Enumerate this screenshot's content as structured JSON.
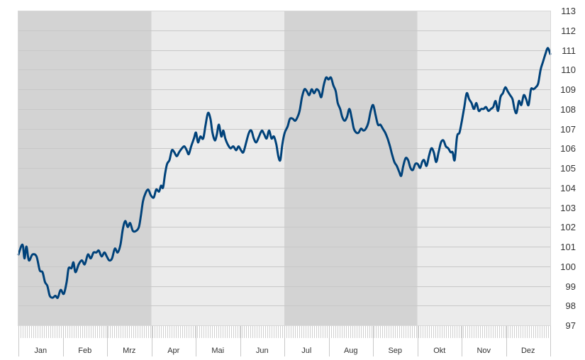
{
  "chart_data": {
    "type": "line",
    "title": "",
    "xlabel": "",
    "ylabel": "",
    "ylim": [
      97,
      113
    ],
    "y_ticks": [
      "97",
      "98",
      "99",
      "100",
      "101",
      "102",
      "103",
      "104",
      "105",
      "106",
      "107",
      "108",
      "109",
      "110",
      "111",
      "112",
      "113"
    ],
    "months": [
      "Jan",
      "Feb",
      "Mrz",
      "Apr",
      "Mai",
      "Jun",
      "Jul",
      "Aug",
      "Sep",
      "Okt",
      "Nov",
      "Dez"
    ],
    "grid": true,
    "line_color": "#00427A",
    "band_colors": {
      "dark": "#D3D3D3",
      "light": "#EBEBEB"
    },
    "shaded_quarters": [
      {
        "start_month": "Jan",
        "end_month": "Mrz",
        "shade": "dark"
      },
      {
        "start_month": "Apr",
        "end_month": "Jun",
        "shade": "light"
      },
      {
        "start_month": "Jul",
        "end_month": "Sep",
        "shade": "dark"
      },
      {
        "start_month": "Okt",
        "end_month": "Dez",
        "shade": "light"
      }
    ],
    "series": [
      {
        "values": [
          [
            0,
            100.6
          ],
          [
            1,
            101.1
          ],
          [
            1.5,
            100.4
          ],
          [
            2,
            101.0
          ],
          [
            2.6,
            100.3
          ],
          [
            3.5,
            100.6
          ],
          [
            4.5,
            100.5
          ],
          [
            5.3,
            99.8
          ],
          [
            6,
            99.7
          ],
          [
            6.6,
            99.2
          ],
          [
            7.2,
            99.0
          ],
          [
            7.8,
            98.5
          ],
          [
            8.5,
            98.4
          ],
          [
            9.2,
            98.5
          ],
          [
            9.8,
            98.4
          ],
          [
            10.5,
            98.8
          ],
          [
            11.3,
            98.6
          ],
          [
            12,
            99.2
          ],
          [
            12.5,
            99.9
          ],
          [
            13.2,
            99.9
          ],
          [
            13.7,
            100.2
          ],
          [
            14.2,
            99.7
          ],
          [
            15,
            100.1
          ],
          [
            15.8,
            100.3
          ],
          [
            16.5,
            100.1
          ],
          [
            17.3,
            100.6
          ],
          [
            18,
            100.4
          ],
          [
            18.7,
            100.7
          ],
          [
            19.4,
            100.7
          ],
          [
            20,
            100.8
          ],
          [
            20.7,
            100.5
          ],
          [
            21.4,
            100.7
          ],
          [
            22,
            100.5
          ],
          [
            22.6,
            100.3
          ],
          [
            23.3,
            100.4
          ],
          [
            24,
            100.9
          ],
          [
            24.7,
            100.7
          ],
          [
            25.4,
            101.1
          ],
          [
            26,
            101.9
          ],
          [
            26.6,
            102.3
          ],
          [
            27.2,
            102.0
          ],
          [
            27.8,
            102.2
          ],
          [
            28.5,
            101.8
          ],
          [
            29.3,
            101.8
          ],
          [
            30,
            102.0
          ],
          [
            30.5,
            102.6
          ],
          [
            31,
            103.3
          ],
          [
            31.6,
            103.7
          ],
          [
            32.3,
            103.9
          ],
          [
            33,
            103.6
          ],
          [
            33.7,
            103.5
          ],
          [
            34.3,
            103.9
          ],
          [
            35,
            103.8
          ],
          [
            35.5,
            104.1
          ],
          [
            36,
            104.0
          ],
          [
            36.5,
            104.7
          ],
          [
            37,
            105.2
          ],
          [
            37.6,
            105.4
          ],
          [
            38.2,
            105.9
          ],
          [
            38.8,
            105.8
          ],
          [
            39.4,
            105.6
          ],
          [
            40,
            105.8
          ],
          [
            40.7,
            106.0
          ],
          [
            41.3,
            106.1
          ],
          [
            41.9,
            105.9
          ],
          [
            42.4,
            105.7
          ],
          [
            43,
            106.1
          ],
          [
            43.7,
            106.5
          ],
          [
            44.2,
            106.8
          ],
          [
            44.7,
            106.3
          ],
          [
            45.3,
            106.6
          ],
          [
            46,
            106.5
          ],
          [
            46.6,
            107.2
          ],
          [
            47.2,
            107.8
          ],
          [
            47.8,
            107.5
          ],
          [
            48.3,
            106.8
          ],
          [
            48.9,
            106.4
          ],
          [
            49.4,
            106.7
          ],
          [
            49.9,
            107.2
          ],
          [
            50.5,
            106.6
          ],
          [
            51,
            106.9
          ],
          [
            51.5,
            106.5
          ],
          [
            52.1,
            106.2
          ],
          [
            52.8,
            106.0
          ],
          [
            53.5,
            106.1
          ],
          [
            54.2,
            105.9
          ],
          [
            54.8,
            106.1
          ],
          [
            55.4,
            105.9
          ],
          [
            56,
            105.8
          ],
          [
            56.7,
            106.3
          ],
          [
            57.4,
            106.8
          ],
          [
            58,
            106.9
          ],
          [
            58.6,
            106.5
          ],
          [
            59.2,
            106.3
          ],
          [
            59.9,
            106.6
          ],
          [
            60.6,
            106.9
          ],
          [
            61.2,
            106.7
          ],
          [
            61.8,
            106.5
          ],
          [
            62.4,
            106.9
          ],
          [
            63,
            106.5
          ],
          [
            63.6,
            106.6
          ],
          [
            64.2,
            106.2
          ],
          [
            64.7,
            105.6
          ],
          [
            65.2,
            105.4
          ],
          [
            65.7,
            106.2
          ],
          [
            66.3,
            106.8
          ],
          [
            67,
            107.1
          ],
          [
            67.6,
            107.5
          ],
          [
            68.3,
            107.5
          ],
          [
            68.9,
            107.4
          ],
          [
            69.5,
            107.6
          ],
          [
            70,
            107.9
          ],
          [
            70.6,
            108.6
          ],
          [
            71.2,
            109.0
          ],
          [
            71.8,
            108.9
          ],
          [
            72.4,
            108.7
          ],
          [
            73,
            109.0
          ],
          [
            73.6,
            108.8
          ],
          [
            74.2,
            109.0
          ],
          [
            74.8,
            108.9
          ],
          [
            75.4,
            108.6
          ],
          [
            76,
            109.2
          ],
          [
            76.6,
            109.6
          ],
          [
            77.2,
            109.5
          ],
          [
            77.8,
            109.6
          ],
          [
            78.4,
            109.2
          ],
          [
            79,
            108.9
          ],
          [
            79.5,
            108.3
          ],
          [
            80.1,
            108.0
          ],
          [
            80.6,
            107.6
          ],
          [
            81.2,
            107.4
          ],
          [
            81.8,
            107.6
          ],
          [
            82.4,
            108.0
          ],
          [
            83,
            107.5
          ],
          [
            83.5,
            107.0
          ],
          [
            84.1,
            106.8
          ],
          [
            84.7,
            106.8
          ],
          [
            85.3,
            107.0
          ],
          [
            85.9,
            106.9
          ],
          [
            86.5,
            107.0
          ],
          [
            87.1,
            107.3
          ],
          [
            87.7,
            107.9
          ],
          [
            88.3,
            108.2
          ],
          [
            88.9,
            107.7
          ],
          [
            89.5,
            107.2
          ],
          [
            90.1,
            107.2
          ],
          [
            90.7,
            107.0
          ],
          [
            91.3,
            106.8
          ],
          [
            91.9,
            106.5
          ],
          [
            92.5,
            106.1
          ],
          [
            93,
            105.7
          ],
          [
            93.6,
            105.3
          ],
          [
            94.2,
            105.1
          ],
          [
            94.8,
            104.8
          ],
          [
            95.3,
            104.6
          ],
          [
            95.8,
            105.1
          ],
          [
            96.4,
            105.5
          ],
          [
            97,
            105.4
          ],
          [
            97.6,
            105.0
          ],
          [
            98.2,
            104.9
          ],
          [
            98.8,
            105.2
          ],
          [
            99.4,
            105.2
          ],
          [
            100,
            105.0
          ],
          [
            100.5,
            105.3
          ],
          [
            101,
            105.4
          ],
          [
            101.6,
            105.1
          ],
          [
            102.2,
            105.6
          ],
          [
            102.8,
            106.0
          ],
          [
            103.4,
            105.8
          ],
          [
            104,
            105.3
          ],
          [
            104.6,
            105.8
          ],
          [
            105.2,
            106.3
          ],
          [
            105.8,
            106.4
          ],
          [
            106.4,
            106.1
          ],
          [
            107,
            106.0
          ],
          [
            107.6,
            105.8
          ],
          [
            108.1,
            105.8
          ],
          [
            108.6,
            105.4
          ],
          [
            109.2,
            106.6
          ],
          [
            109.8,
            106.8
          ],
          [
            110.4,
            107.4
          ],
          [
            111,
            108.1
          ],
          [
            111.6,
            108.8
          ],
          [
            112.2,
            108.5
          ],
          [
            112.8,
            108.3
          ],
          [
            113.4,
            108.0
          ],
          [
            114,
            108.3
          ],
          [
            114.6,
            107.9
          ],
          [
            115.2,
            108.0
          ],
          [
            115.8,
            108.0
          ],
          [
            116.4,
            108.1
          ],
          [
            117,
            107.9
          ],
          [
            117.6,
            108.0
          ],
          [
            118.2,
            108.1
          ],
          [
            118.8,
            108.4
          ],
          [
            119.4,
            107.9
          ],
          [
            120,
            108.6
          ],
          [
            120.6,
            108.8
          ],
          [
            121.2,
            109.1
          ],
          [
            121.8,
            108.9
          ],
          [
            122.4,
            108.7
          ],
          [
            123,
            108.5
          ],
          [
            123.5,
            108.0
          ],
          [
            124,
            107.8
          ],
          [
            124.6,
            108.4
          ],
          [
            125.2,
            108.2
          ],
          [
            125.8,
            108.7
          ],
          [
            126.4,
            108.5
          ],
          [
            127,
            108.2
          ],
          [
            127.6,
            109.0
          ],
          [
            128.2,
            109.0
          ],
          [
            128.8,
            109.1
          ],
          [
            129.4,
            109.3
          ],
          [
            130,
            110.0
          ],
          [
            130.6,
            110.4
          ],
          [
            131.2,
            110.8
          ],
          [
            131.8,
            111.1
          ],
          [
            132.4,
            110.8
          ]
        ]
      }
    ]
  }
}
